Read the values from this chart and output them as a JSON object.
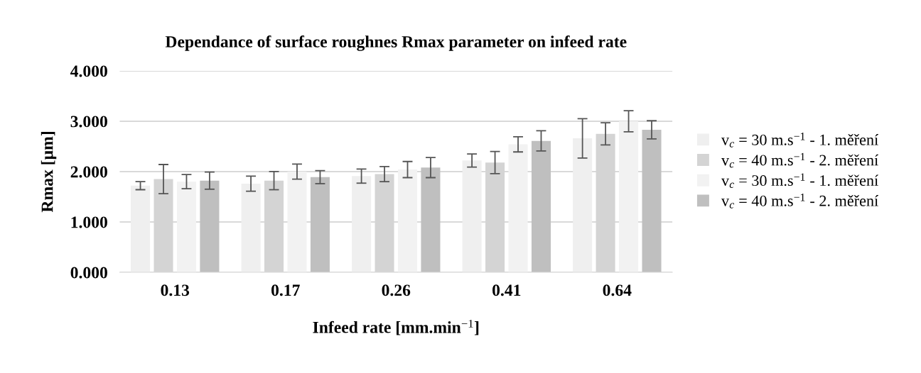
{
  "chart_data": {
    "type": "bar",
    "title": "Dependance of surface roughnes Rmax parameter on infeed rate",
    "xlabel": "Infeed rate [mm.min$^{−1}$]",
    "ylabel": "Rmax [µm]",
    "categories": [
      "0.13",
      "0.17",
      "0.26",
      "0.41",
      "0.64"
    ],
    "series": [
      {
        "name": "v$_{c}$ = 30 m.s$^{−1}$ - 1. měření",
        "color": "#efefef",
        "values": [
          1.72,
          1.76,
          1.91,
          2.22,
          2.66
        ],
        "errors": [
          0.08,
          0.15,
          0.14,
          0.13,
          0.39
        ]
      },
      {
        "name": "v$_{c}$ = 40 m.s$^{−1}$ - 2. měření",
        "color": "#d4d4d4",
        "values": [
          1.85,
          1.82,
          1.95,
          2.18,
          2.75
        ],
        "errors": [
          0.29,
          0.18,
          0.15,
          0.22,
          0.22
        ]
      },
      {
        "name": "v$_{c}$ = 30 m.s$^{−1}$ - 1. měření",
        "color": "#f2f2f2",
        "values": [
          1.8,
          2.0,
          2.04,
          2.54,
          3.0
        ],
        "errors": [
          0.14,
          0.15,
          0.16,
          0.15,
          0.21
        ]
      },
      {
        "name": "v$_{c}$ = 40 m.s$^{−1}$ - 2. měření",
        "color": "#bfbfbf",
        "values": [
          1.82,
          1.89,
          2.08,
          2.61,
          2.83
        ],
        "errors": [
          0.17,
          0.13,
          0.2,
          0.2,
          0.18
        ]
      }
    ],
    "ylim": [
      0,
      4
    ],
    "yticks": [
      {
        "value": 0,
        "label": "0.000"
      },
      {
        "value": 1,
        "label": "1.000"
      },
      {
        "value": 2,
        "label": "2.000"
      },
      {
        "value": 3,
        "label": "3.000"
      },
      {
        "value": 4,
        "label": "4.000"
      }
    ],
    "grid": "y",
    "legend": "right"
  }
}
